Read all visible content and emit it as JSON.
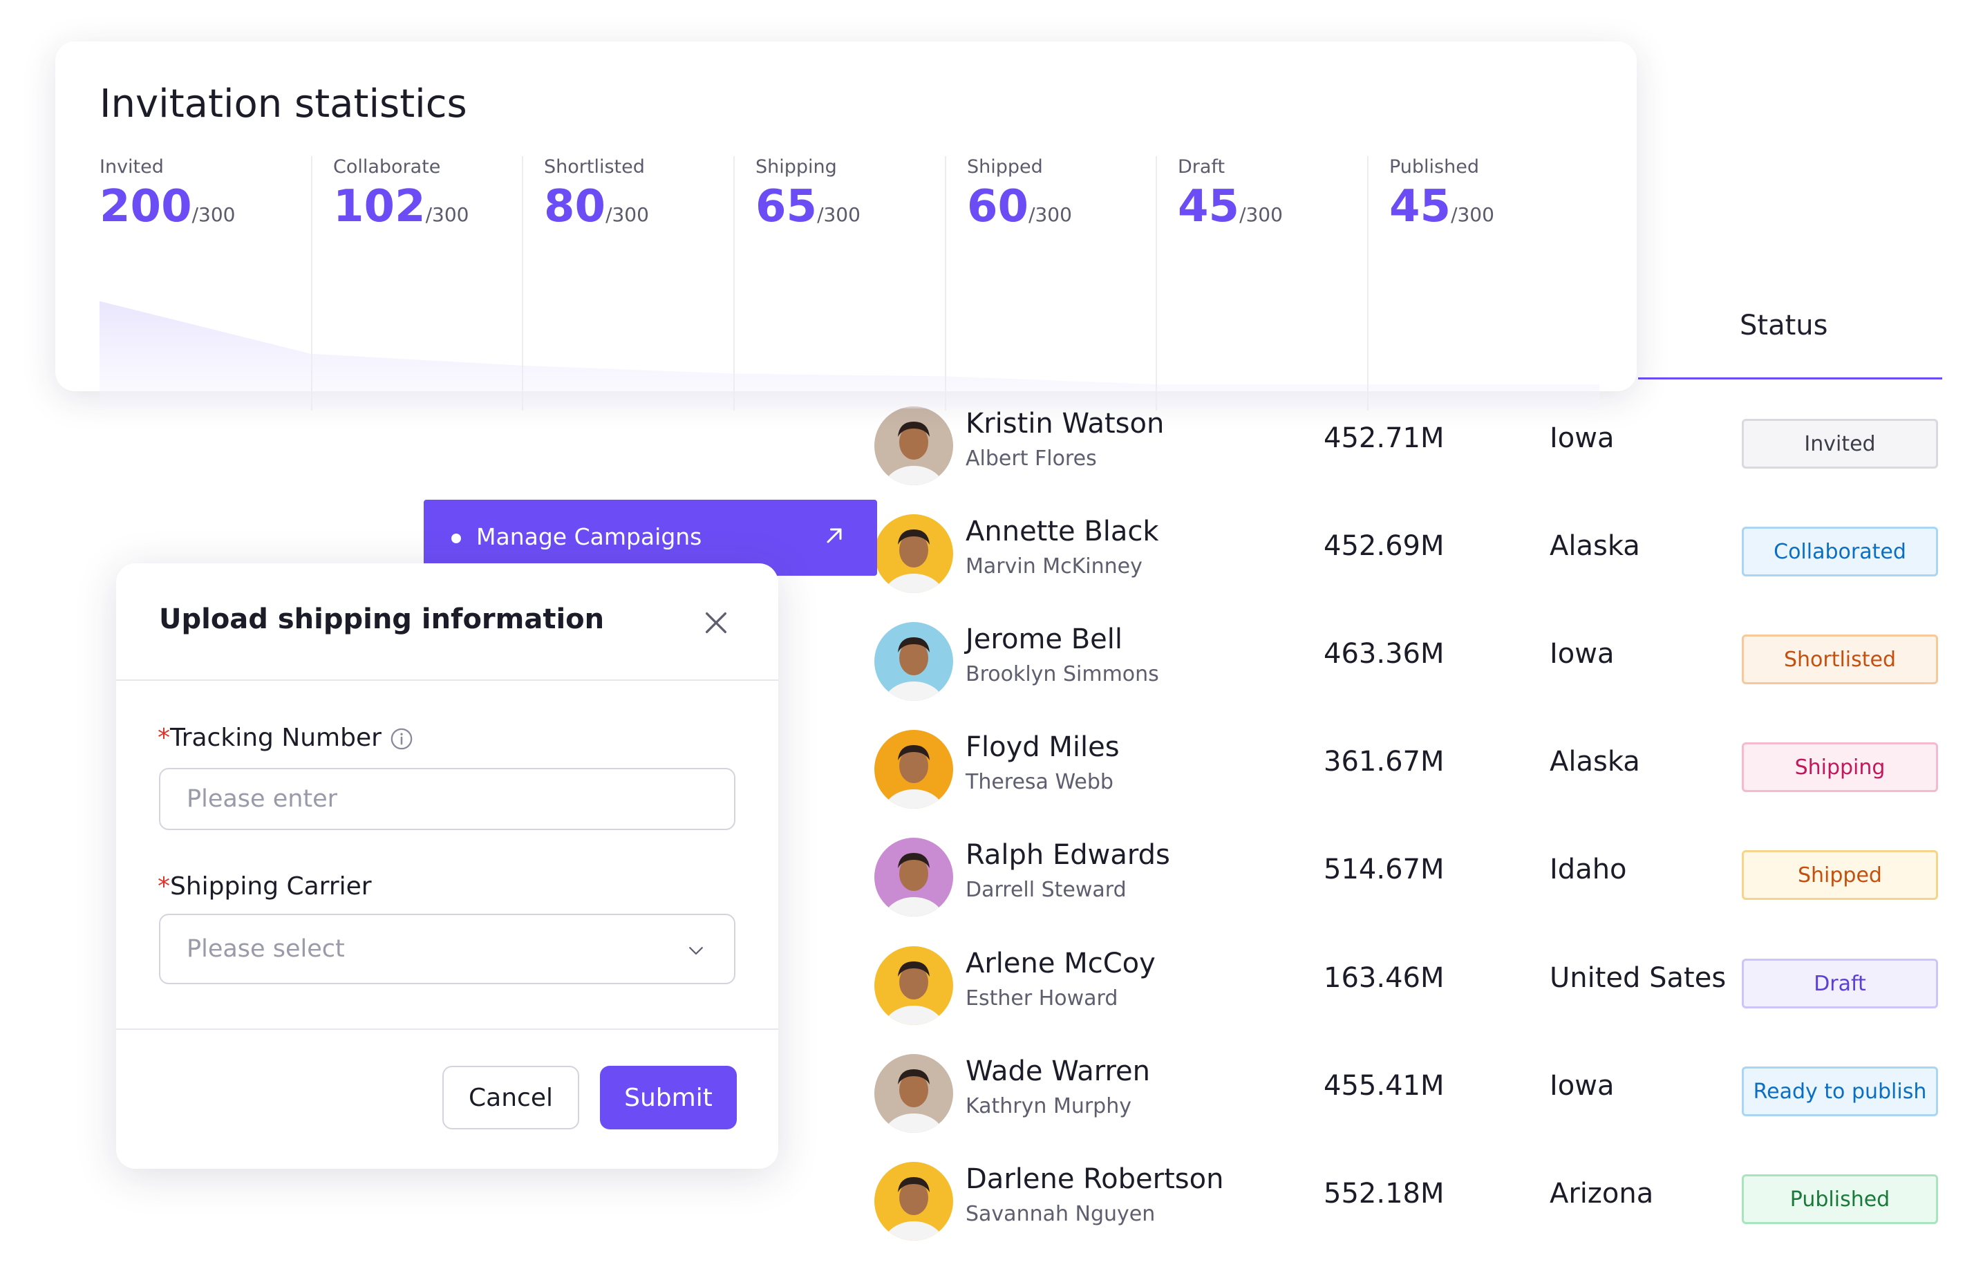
{
  "stats": {
    "title": "Invitation statistics",
    "items": [
      {
        "label": "Invited",
        "value": "200",
        "total": "/300"
      },
      {
        "label": "Collaborate",
        "value": "102",
        "total": "/300"
      },
      {
        "label": "Shortlisted",
        "value": "80",
        "total": "/300"
      },
      {
        "label": "Shipping",
        "value": "65",
        "total": "/300"
      },
      {
        "label": "Shipped",
        "value": "60",
        "total": "/300"
      },
      {
        "label": "Draft",
        "value": "45",
        "total": "/300"
      },
      {
        "label": "Published",
        "value": "45",
        "total": "/300"
      }
    ]
  },
  "manage": {
    "label": "Manage Campaigns",
    "icon": "arrow-up-right-icon",
    "color": "#6c4df5"
  },
  "dialog": {
    "title": "Upload shipping information",
    "tracking": {
      "required_mark": "*",
      "label": "Tracking Number",
      "placeholder": "Please enter"
    },
    "carrier": {
      "required_mark": "*",
      "label": "Shipping Carrier",
      "placeholder": "Please select"
    },
    "cancel_label": "Cancel",
    "submit_label": "Submit"
  },
  "table": {
    "status_header": "Status",
    "rows": [
      {
        "name": "Kristin Watson",
        "sub": "Albert Flores",
        "amount": "452.71M",
        "location": "Iowa",
        "status": "Invited",
        "status_color": "#3d3d4a",
        "status_bg": "#f5f5f7",
        "status_border": "#d9d9df",
        "avatar_bg": "#c9b7a8"
      },
      {
        "name": "Annette Black",
        "sub": "Marvin McKinney",
        "amount": "452.69M",
        "location": "Alaska",
        "status": "Collaborated",
        "status_color": "#0a6fc2",
        "status_bg": "#eaf5fd",
        "status_border": "#a9d6f5",
        "avatar_bg": "#f5bd2c"
      },
      {
        "name": "Jerome Bell",
        "sub": "Brooklyn Simmons",
        "amount": "463.36M",
        "location": "Iowa",
        "status": "Shortlisted",
        "status_color": "#c4500d",
        "status_bg": "#fef3e8",
        "status_border": "#f7c99a",
        "avatar_bg": "#8fd0e8"
      },
      {
        "name": "Floyd Miles",
        "sub": "Theresa Webb",
        "amount": "361.67M",
        "location": "Alaska",
        "status": "Shipping",
        "status_color": "#c2185b",
        "status_bg": "#fdeef4",
        "status_border": "#f5b9d0",
        "avatar_bg": "#f2a51b"
      },
      {
        "name": "Ralph Edwards",
        "sub": "Darrell Steward",
        "amount": "514.67M",
        "location": "Idaho",
        "status": "Shipped",
        "status_color": "#c4500d",
        "status_bg": "#fff8e6",
        "status_border": "#f5d58a",
        "avatar_bg": "#c98bd1"
      },
      {
        "name": "Arlene McCoy",
        "sub": "Esther Howard",
        "amount": "163.46M",
        "location": "United Sates",
        "status": "Draft",
        "status_color": "#5b3fd6",
        "status_bg": "#f3f0fe",
        "status_border": "#cfc4f7",
        "avatar_bg": "#f5bd2c"
      },
      {
        "name": "Wade Warren",
        "sub": "Kathryn Murphy",
        "amount": "455.41M",
        "location": "Iowa",
        "status": "Ready to publish",
        "status_color": "#0a6fc2",
        "status_bg": "#eaf5fd",
        "status_border": "#a9d6f5",
        "avatar_bg": "#c9b7a8"
      },
      {
        "name": "Darlene Robertson",
        "sub": "Savannah Nguyen",
        "amount": "552.18M",
        "location": "Arizona",
        "status": "Published",
        "status_color": "#1b7a3a",
        "status_bg": "#eafaf0",
        "status_border": "#a8e4bd",
        "avatar_bg": "#f5bd2c"
      }
    ]
  }
}
